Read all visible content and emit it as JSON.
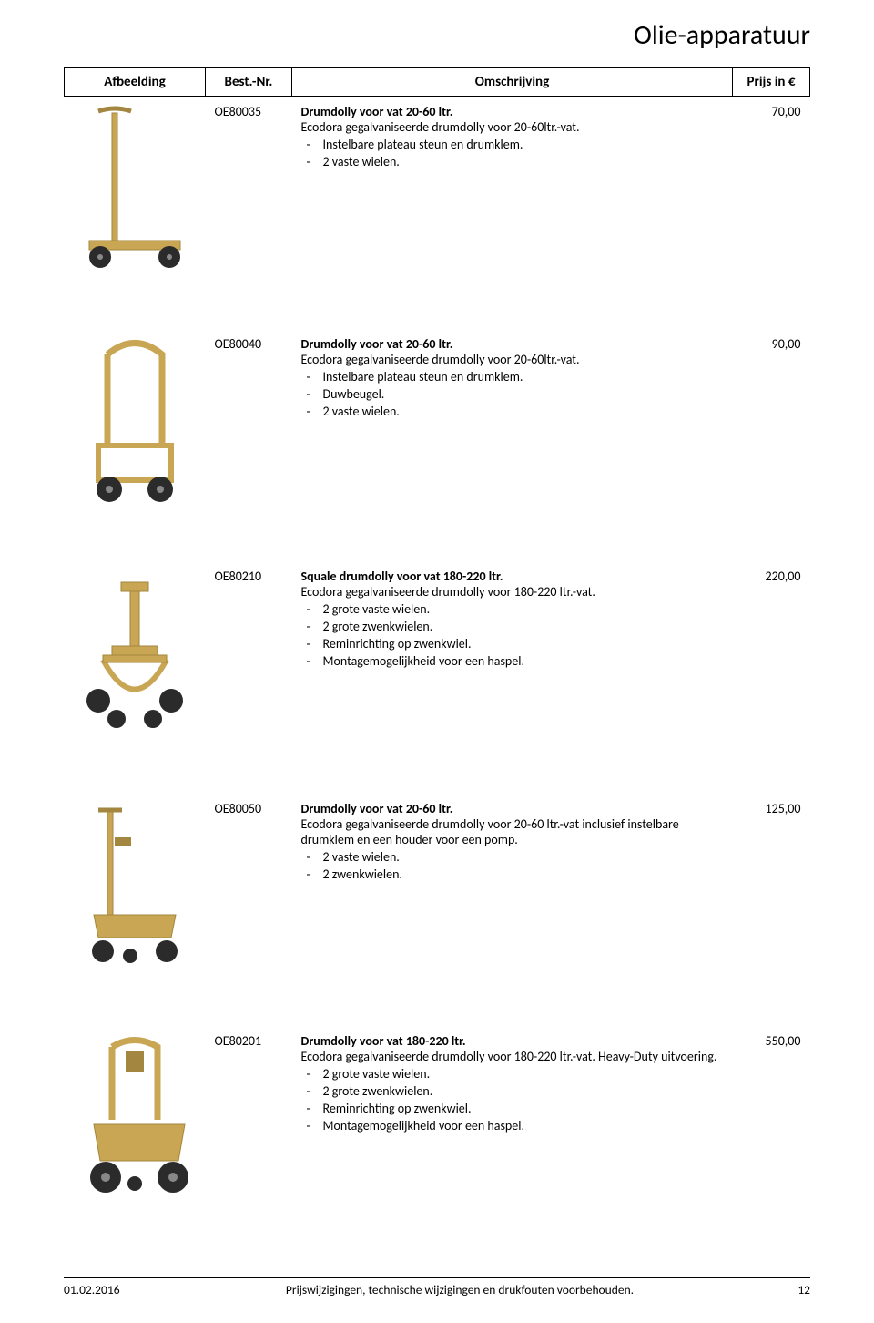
{
  "page": {
    "title": "Olie-apparatuur",
    "headers": {
      "image": "Afbeelding",
      "nr": "Best.-Nr.",
      "desc": "Omschrijving",
      "price": "Prijs in €"
    }
  },
  "rows": [
    {
      "nr": "OE80035",
      "title": "Drumdolly voor vat 20-60 ltr.",
      "sub": "Ecodora gegalvaniseerde drumdolly voor 20-60ltr.-vat.",
      "bullets": [
        "Instelbare plateau steun en drumklem.",
        "2 vaste wielen."
      ],
      "price": "70,00",
      "image_type": "dolly-small-handle"
    },
    {
      "nr": "OE80040",
      "title": "Drumdolly voor vat 20-60 ltr.",
      "sub": "Ecodora gegalvaniseerde drumdolly voor 20-60ltr.-vat.",
      "bullets": [
        "Instelbare plateau steun en drumklem.",
        "Duwbeugel.",
        "2 vaste wielen."
      ],
      "price": "90,00",
      "image_type": "dolly-pushbar"
    },
    {
      "nr": "OE80210",
      "title": "Squale drumdolly voor vat 180-220 ltr.",
      "sub": "Ecodora gegalvaniseerde drumdolly voor 180-220 ltr.-vat.",
      "bullets": [
        "2 grote vaste wielen.",
        "2 grote zwenkwielen.",
        "Reminrichting op zwenkwiel.",
        "Montagemogelijkheid voor een haspel."
      ],
      "price": "220,00",
      "image_type": "dolly-squale"
    },
    {
      "nr": "OE80050",
      "title": "Drumdolly voor vat 20-60 ltr.",
      "sub": "Ecodora gegalvaniseerde drumdolly voor 20-60 ltr.-vat inclusief instelbare drumklem en een houder voor een pomp.",
      "bullets": [
        "2 vaste wielen.",
        "2 zwenkwielen."
      ],
      "price": "125,00",
      "image_type": "dolly-tray"
    },
    {
      "nr": "OE80201",
      "title": "Drumdolly voor vat 180-220 ltr.",
      "sub": "Ecodora gegalvaniseerde drumdolly voor 180-220 ltr.-vat. Heavy-Duty uitvoering.",
      "bullets": [
        "2 grote vaste wielen.",
        "2 grote zwenkwielen.",
        "Reminrichting op zwenkwiel.",
        "Montagemogelijkheid voor een haspel."
      ],
      "price": "550,00",
      "image_type": "dolly-heavy"
    }
  ],
  "footer": {
    "date": "01.02.2016",
    "text": "Prijswijzigingen, technische wijzigingen en drukfouten voorbehouden.",
    "page_nr": "12"
  },
  "colors": {
    "gold": "#c9a653",
    "gold_dark": "#a3863f",
    "wheel": "#2b2b2b",
    "line": "#000000"
  }
}
